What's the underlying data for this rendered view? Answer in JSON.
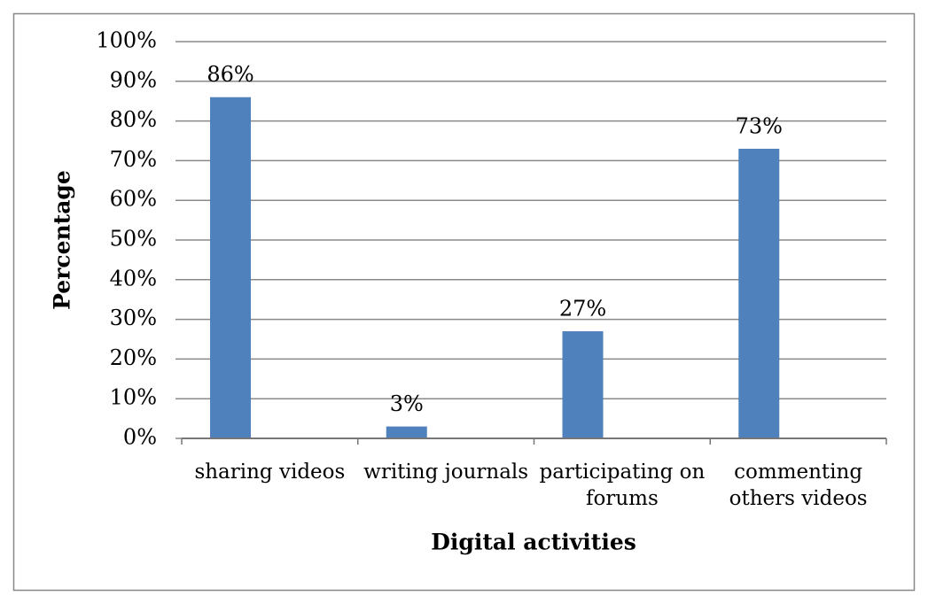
{
  "chart_data": {
    "type": "bar",
    "x_label": "Digital activities",
    "y_label": "Percentage",
    "categories": [
      "sharing videos",
      "writing journals",
      "participating on forums",
      "commenting others videos"
    ],
    "values": [
      86,
      3,
      27,
      73
    ],
    "value_labels": [
      "86%",
      "3%",
      "27%",
      "73%"
    ],
    "color": "#4f81bd",
    "ylim": [
      0,
      100
    ],
    "yticks": [
      {
        "value": 0,
        "label": "0%"
      },
      {
        "value": 10,
        "label": "10%"
      },
      {
        "value": 20,
        "label": "20%"
      },
      {
        "value": 30,
        "label": "30%"
      },
      {
        "value": 40,
        "label": "40%"
      },
      {
        "value": 50,
        "label": "50%"
      },
      {
        "value": 60,
        "label": "60%"
      },
      {
        "value": 70,
        "label": "70%"
      },
      {
        "value": 80,
        "label": "80%"
      },
      {
        "value": 90,
        "label": "90%"
      },
      {
        "value": 100,
        "label": "100%"
      }
    ],
    "grid": true
  }
}
